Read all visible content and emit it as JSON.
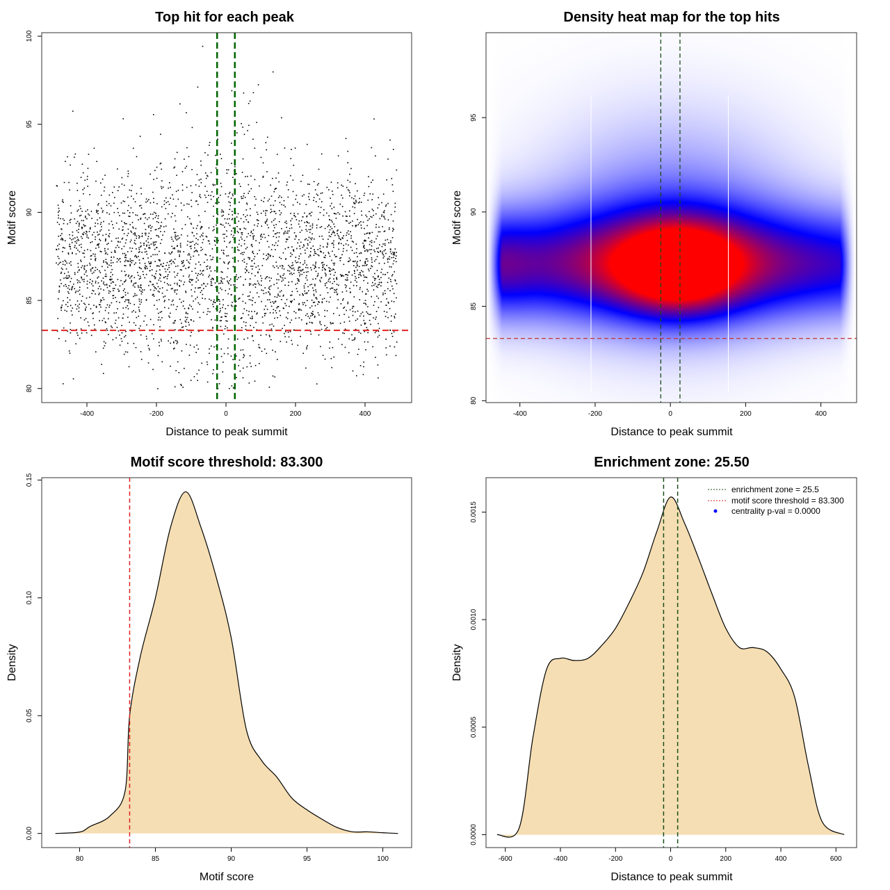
{
  "chart_data": [
    {
      "type": "scatter",
      "title": "Top hit for each peak",
      "xlabel": "Distance to peak summit",
      "ylabel": "Motif score",
      "xlim": [
        -530,
        534
      ],
      "ylim": [
        79.2,
        100.2
      ],
      "xticks": [
        -400,
        -200,
        0,
        200,
        400
      ],
      "yticks": [
        80,
        85,
        90,
        95,
        100
      ],
      "vlines": [
        -25.5,
        25.5
      ],
      "vline_color": "#006400",
      "hline": 83.3,
      "hline_color": "#e02020",
      "point_color": "#000000"
    },
    {
      "type": "heatmap",
      "title": "Density heat map for the top hits",
      "xlabel": "Distance to peak summit",
      "ylabel": "Motif score",
      "xlim": [
        -490,
        495
      ],
      "ylim": [
        79.9,
        99.5
      ],
      "xticks": [
        -400,
        -200,
        0,
        200,
        400
      ],
      "yticks": [
        80,
        85,
        90,
        95
      ],
      "vlines": [
        -25.5,
        25.5
      ],
      "vline_color": "#1a4d1a",
      "hline": 83.3,
      "hline_color": "#c03030",
      "colors": [
        "#ffffff",
        "#0000ff",
        "#ff0000"
      ]
    },
    {
      "type": "area",
      "title": "Motif score threshold: 83.300",
      "xlabel": "Motif score",
      "ylabel": "Density",
      "xlim": [
        77.5,
        101.9
      ],
      "ylim": [
        -0.006,
        0.151
      ],
      "xticks": [
        80,
        85,
        90,
        95,
        100
      ],
      "yticks": [
        "0.00",
        "0.05",
        "0.10",
        "0.15"
      ],
      "fill": "#f5deb3",
      "vline": 83.3,
      "vline_color": "#e02020",
      "x": [
        78.4,
        80,
        80.7,
        82,
        83,
        83.3,
        84,
        85,
        86,
        87,
        88,
        89,
        90,
        91,
        92,
        93,
        94,
        95,
        96,
        97,
        98,
        99,
        100,
        101
      ],
      "y": [
        0,
        0.0006,
        0.003,
        0.0074,
        0.018,
        0.05,
        0.075,
        0.1,
        0.13,
        0.145,
        0.13,
        0.109,
        0.083,
        0.044,
        0.031,
        0.024,
        0.015,
        0.01,
        0.006,
        0.0025,
        0.0007,
        0.0007,
        0.0003,
        0
      ]
    },
    {
      "type": "area",
      "title": "Enrichment zone: 25.50",
      "xlabel": "Distance to peak summit",
      "ylabel": "Density",
      "xlim": [
        -670,
        675
      ],
      "ylim": [
        -6e-05,
        0.00166
      ],
      "xticks": [
        -600,
        -400,
        -200,
        0,
        200,
        400,
        600
      ],
      "yticks": [
        "0.0000",
        "0.0005",
        "0.0010",
        "0.0015"
      ],
      "fill": "#f5deb3",
      "vlines": [
        -25.5,
        25.5
      ],
      "vline_color": "#1a4d1a",
      "x": [
        -630,
        -550,
        -500,
        -450,
        -400,
        -350,
        -300,
        -250,
        -200,
        -150,
        -100,
        -50,
        0,
        50,
        100,
        150,
        200,
        250,
        300,
        350,
        400,
        450,
        500,
        550,
        630
      ],
      "y": [
        0,
        3e-05,
        0.00045,
        0.00077,
        0.00082,
        0.00081,
        0.00082,
        0.00088,
        0.00096,
        0.00108,
        0.00122,
        0.00141,
        0.00157,
        0.00145,
        0.00129,
        0.00112,
        0.00096,
        0.00087,
        0.00087,
        0.00085,
        0.00077,
        0.00064,
        0.00032,
        6e-05,
        0
      ],
      "legend": {
        "position": "top-right",
        "items": [
          {
            "label": "enrichment zone = 25.5",
            "color": "#1a4d1a",
            "style": "dotted-line"
          },
          {
            "label": "motif score threshold = 83.300",
            "color": "#e02020",
            "style": "dotted-line"
          },
          {
            "label": "centrality p-val = 0.0000",
            "color": "#0000ff",
            "style": "point"
          }
        ]
      }
    }
  ]
}
